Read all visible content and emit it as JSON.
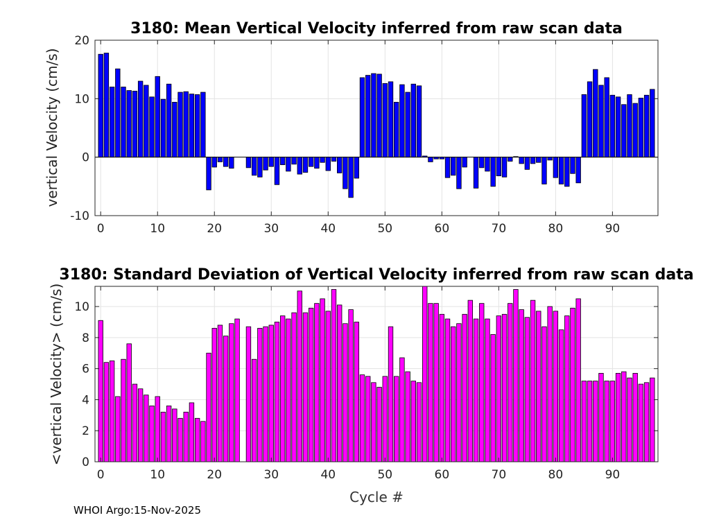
{
  "footer": "WHOI Argo:15-Nov-2025",
  "chart_data": [
    {
      "type": "bar",
      "title": "3180: Mean Vertical Velocity inferred from raw scan data",
      "ylabel": "vertical Velocity (cm/s)",
      "xlabel": "",
      "xlim": [
        -1,
        98
      ],
      "ylim": [
        -10,
        20
      ],
      "xticks": [
        0,
        10,
        20,
        30,
        40,
        50,
        60,
        70,
        80,
        90
      ],
      "yticks": [
        -10,
        0,
        10,
        20
      ],
      "ytick_labels": [
        "-10",
        "0",
        "10",
        "20"
      ],
      "grid": true,
      "color": "#0000ff",
      "x": [
        0,
        1,
        2,
        3,
        4,
        5,
        6,
        7,
        8,
        9,
        10,
        11,
        12,
        13,
        14,
        15,
        16,
        17,
        18,
        19,
        20,
        21,
        22,
        23,
        24,
        25,
        26,
        27,
        28,
        29,
        30,
        31,
        32,
        33,
        34,
        35,
        36,
        37,
        38,
        39,
        40,
        41,
        42,
        43,
        44,
        45,
        46,
        47,
        48,
        49,
        50,
        51,
        52,
        53,
        54,
        55,
        56,
        57,
        58,
        59,
        60,
        61,
        62,
        63,
        64,
        65,
        66,
        67,
        68,
        69,
        70,
        71,
        72,
        73,
        74,
        75,
        76,
        77,
        78,
        79,
        80,
        81,
        82,
        83,
        84,
        85,
        86,
        87,
        88,
        89,
        90,
        91,
        92,
        93,
        94,
        95,
        96,
        97
      ],
      "values": [
        17.6,
        17.8,
        12.0,
        15.1,
        12.0,
        11.4,
        11.3,
        13.0,
        12.3,
        10.3,
        13.8,
        9.9,
        12.5,
        9.4,
        11.1,
        11.2,
        10.8,
        10.7,
        11.1,
        -5.6,
        -1.7,
        -0.8,
        -1.6,
        -1.9,
        null,
        null,
        -1.8,
        -3.1,
        -3.4,
        -2.2,
        -1.6,
        -4.7,
        -1.3,
        -2.4,
        -1.2,
        -2.9,
        -2.6,
        -1.6,
        -1.9,
        -0.9,
        -2.3,
        -0.7,
        -2.7,
        -5.4,
        -6.9,
        -3.6,
        13.6,
        14.0,
        14.3,
        14.2,
        12.6,
        12.9,
        9.4,
        12.4,
        11.1,
        12.5,
        12.2,
        0.2,
        -0.8,
        -0.3,
        -0.3,
        -3.5,
        -3.1,
        -5.4,
        -1.7,
        null,
        -5.3,
        -1.8,
        -2.4,
        -5.0,
        -3.2,
        -3.4,
        -0.7,
        0.1,
        -1.1,
        -2.1,
        -1.1,
        -0.9,
        -4.6,
        -0.5,
        -3.5,
        -4.6,
        -5.0,
        -2.8,
        -4.4,
        10.7,
        12.9,
        15.0,
        12.3,
        13.6,
        10.6,
        10.3,
        9.0,
        10.7,
        9.2,
        10.1,
        10.6,
        11.6
      ]
    },
    {
      "type": "bar",
      "title": "3180: Standard Deviation of Vertical Velocity inferred from raw scan data",
      "ylabel": "<vertical Velocity> (cm/s)",
      "xlabel": "Cycle #",
      "xlim": [
        -1,
        98
      ],
      "ylim": [
        0,
        11.3
      ],
      "xticks": [
        0,
        10,
        20,
        30,
        40,
        50,
        60,
        70,
        80,
        90
      ],
      "yticks": [
        0,
        2,
        4,
        6,
        8,
        10
      ],
      "ytick_labels": [
        "0",
        "2",
        "4",
        "6",
        "8",
        "10"
      ],
      "grid": true,
      "color": "#ff00ff",
      "x": [
        0,
        1,
        2,
        3,
        4,
        5,
        6,
        7,
        8,
        9,
        10,
        11,
        12,
        13,
        14,
        15,
        16,
        17,
        18,
        19,
        20,
        21,
        22,
        23,
        24,
        25,
        26,
        27,
        28,
        29,
        30,
        31,
        32,
        33,
        34,
        35,
        36,
        37,
        38,
        39,
        40,
        41,
        42,
        43,
        44,
        45,
        46,
        47,
        48,
        49,
        50,
        51,
        52,
        53,
        54,
        55,
        56,
        57,
        58,
        59,
        60,
        61,
        62,
        63,
        64,
        65,
        66,
        67,
        68,
        69,
        70,
        71,
        72,
        73,
        74,
        75,
        76,
        77,
        78,
        79,
        80,
        81,
        82,
        83,
        84,
        85,
        86,
        87,
        88,
        89,
        90,
        91,
        92,
        93,
        94,
        95,
        96,
        97
      ],
      "values": [
        9.1,
        6.4,
        6.5,
        4.2,
        6.6,
        7.6,
        5.0,
        4.7,
        4.3,
        3.6,
        4.2,
        3.2,
        3.6,
        3.4,
        2.8,
        3.2,
        3.8,
        2.8,
        2.6,
        7.0,
        8.6,
        8.8,
        8.1,
        8.9,
        9.2,
        null,
        8.7,
        6.6,
        8.6,
        8.7,
        8.8,
        9.0,
        9.4,
        9.2,
        9.6,
        11.0,
        9.6,
        9.9,
        10.2,
        10.5,
        9.7,
        11.1,
        10.1,
        8.9,
        9.8,
        9.0,
        5.6,
        5.5,
        5.1,
        4.8,
        5.5,
        8.7,
        5.5,
        6.7,
        5.8,
        5.2,
        5.1,
        11.3,
        10.2,
        10.2,
        9.5,
        9.2,
        8.7,
        8.9,
        9.5,
        10.4,
        9.2,
        10.2,
        9.2,
        8.2,
        9.4,
        9.5,
        10.2,
        11.1,
        9.8,
        9.3,
        10.4,
        9.7,
        8.7,
        10.0,
        9.7,
        8.5,
        9.4,
        9.9,
        10.5,
        5.2,
        5.2,
        5.2,
        5.7,
        5.2,
        5.2,
        5.7,
        5.8,
        5.4,
        5.7,
        5.0,
        5.1,
        5.4
      ]
    }
  ]
}
